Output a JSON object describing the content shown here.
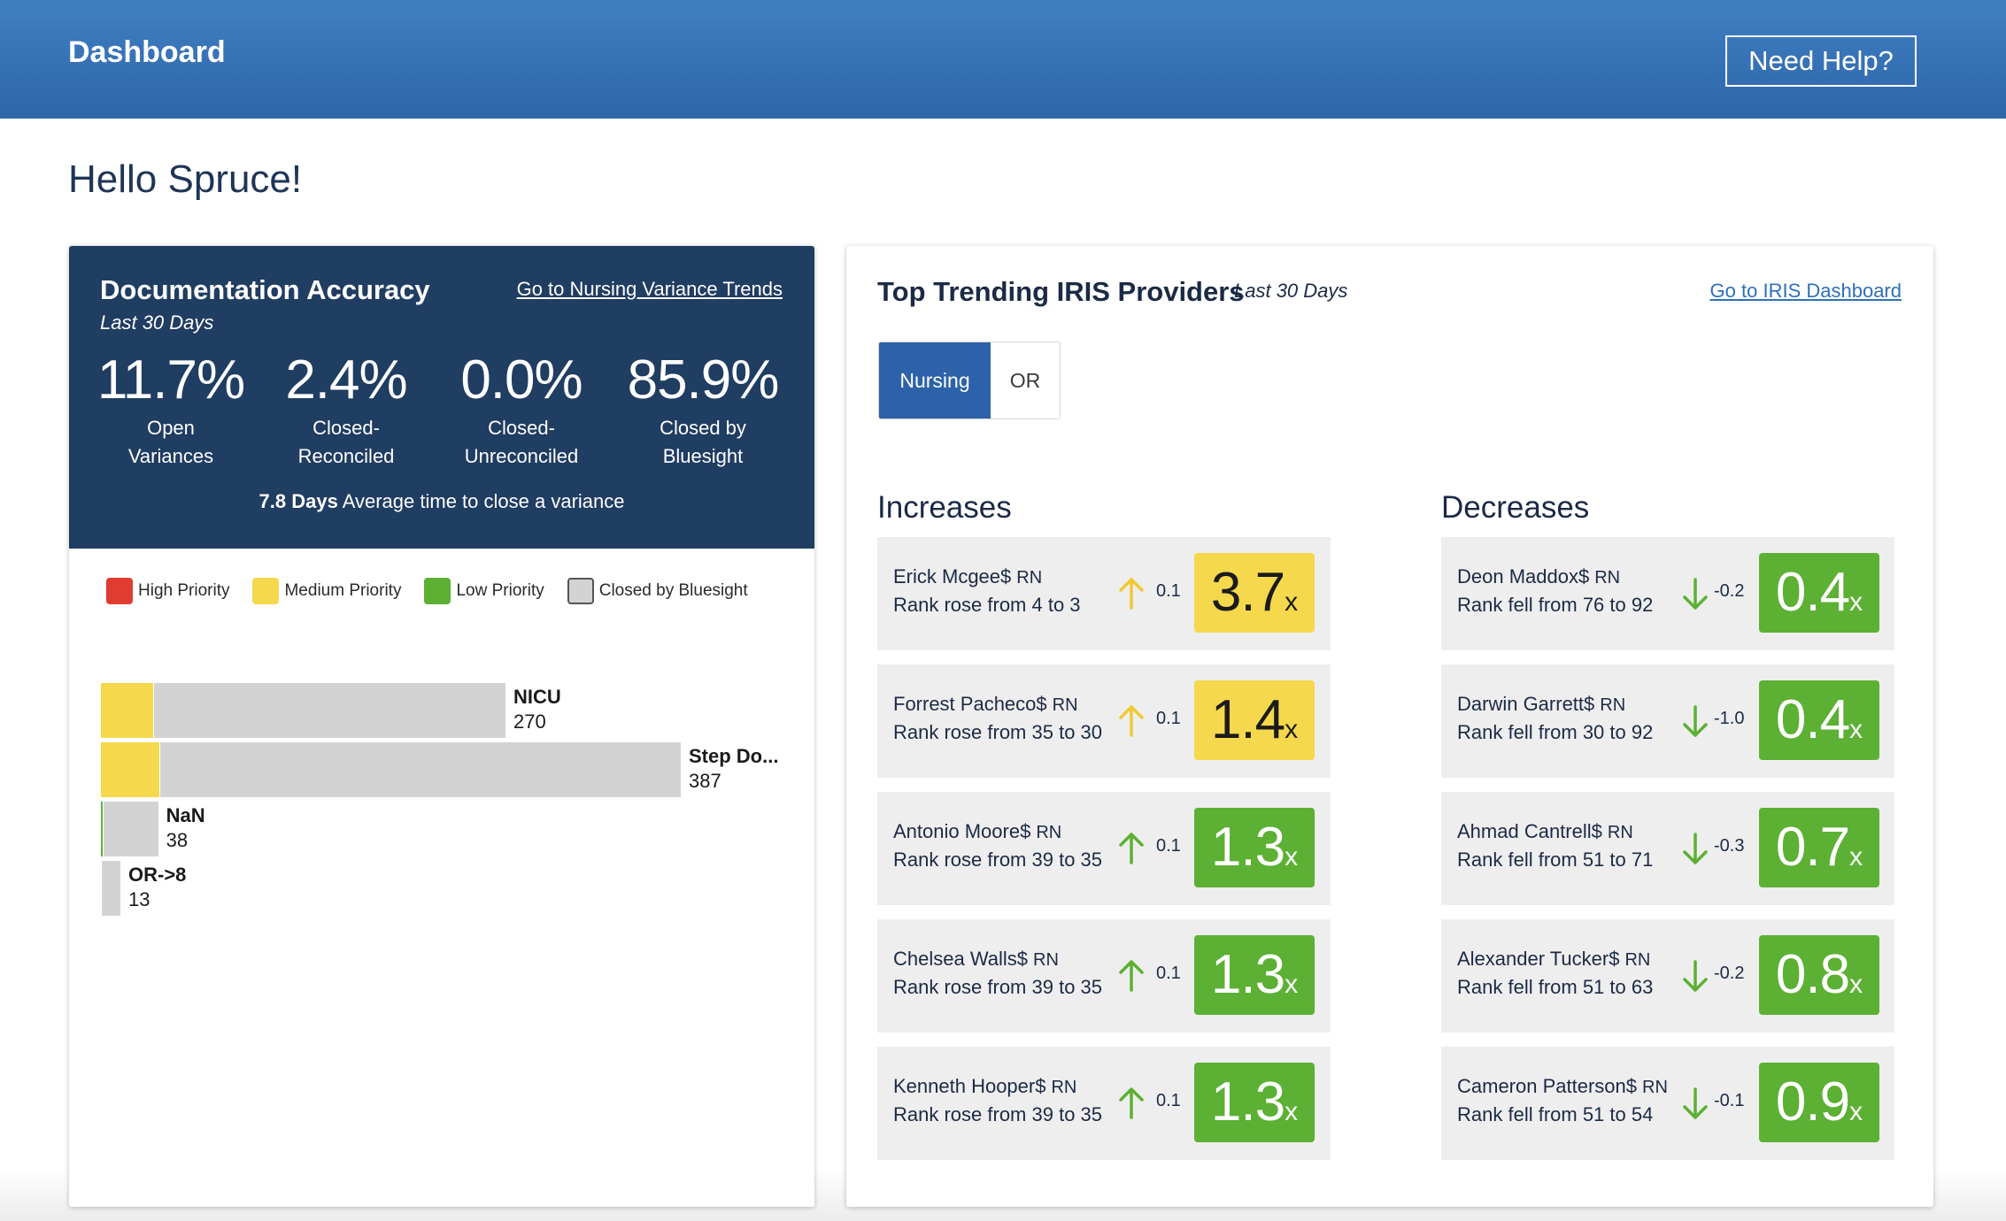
{
  "header": {
    "title": "Dashboard",
    "help_label": "Need Help?"
  },
  "greeting": "Hello Spruce!",
  "accuracy": {
    "title": "Documentation Accuracy",
    "subtitle": "Last 30 Days",
    "link": "Go to Nursing Variance Trends",
    "stats": [
      {
        "value": "11.7%",
        "label_1": "Open",
        "label_2": "Variances"
      },
      {
        "value": "2.4%",
        "label_1": "Closed-",
        "label_2": "Reconciled"
      },
      {
        "value": "0.0%",
        "label_1": "Closed-",
        "label_2": "Unreconciled"
      },
      {
        "value": "85.9%",
        "label_1": "Closed by",
        "label_2": "Bluesight"
      }
    ],
    "avg_days": "7.8 Days",
    "avg_text": "Average time to close a variance"
  },
  "legend": [
    {
      "label": "High Priority",
      "color": "#e03c31"
    },
    {
      "label": "Medium Priority",
      "color": "#f5d84c"
    },
    {
      "label": "Low Priority",
      "color": "#5cb033"
    },
    {
      "label": "Closed by Bluesight",
      "color": "#d3d3d3"
    }
  ],
  "chart_data": {
    "type": "bar",
    "orientation": "horizontal",
    "stacked": true,
    "categories": [
      "NICU",
      "Step Do...",
      "NaN",
      "OR->8"
    ],
    "totals": [
      270,
      387,
      38,
      13
    ],
    "total_labels": [
      "270",
      "387",
      "38",
      "13"
    ],
    "series": [
      {
        "name": "High Priority",
        "values": [
          0,
          0,
          0,
          0
        ]
      },
      {
        "name": "Medium Priority",
        "values": [
          35,
          39,
          0,
          0
        ]
      },
      {
        "name": "Low Priority",
        "values": [
          0,
          0,
          1,
          0
        ]
      },
      {
        "name": "Closed by Bluesight",
        "values": [
          235,
          348,
          37,
          13
        ]
      }
    ]
  },
  "trending": {
    "title": "Top Trending IRIS Providers",
    "subtitle": "Last 30 Days",
    "link": "Go to IRIS Dashboard",
    "tabs": [
      "Nursing",
      "OR"
    ],
    "increases_label": "Increases",
    "decreases_label": "Decreases",
    "increases": [
      {
        "name": "Erick Mcgee$",
        "role": "RN",
        "rank": "Rank rose from 4 to 3",
        "change": "0.1",
        "value": "3.7",
        "unit": "x",
        "level": "yellow"
      },
      {
        "name": "Forrest Pacheco$",
        "role": "RN",
        "rank": "Rank rose from 35 to 30",
        "change": "0.1",
        "value": "1.4",
        "unit": "x",
        "level": "yellow"
      },
      {
        "name": "Antonio Moore$",
        "role": "RN",
        "rank": "Rank rose from 39 to 35",
        "change": "0.1",
        "value": "1.3",
        "unit": "x",
        "level": "green"
      },
      {
        "name": "Chelsea Walls$",
        "role": "RN",
        "rank": "Rank rose from 39 to 35",
        "change": "0.1",
        "value": "1.3",
        "unit": "x",
        "level": "green"
      },
      {
        "name": "Kenneth Hooper$",
        "role": "RN",
        "rank": "Rank rose from 39 to 35",
        "change": "0.1",
        "value": "1.3",
        "unit": "x",
        "level": "green"
      }
    ],
    "decreases": [
      {
        "name": "Deon Maddox$",
        "role": "RN",
        "rank": "Rank fell from 76 to 92",
        "change": "-0.2",
        "value": "0.4",
        "unit": "x",
        "level": "green"
      },
      {
        "name": "Darwin Garrett$",
        "role": "RN",
        "rank": "Rank fell from 30 to 92",
        "change": "-1.0",
        "value": "0.4",
        "unit": "x",
        "level": "green"
      },
      {
        "name": "Ahmad Cantrell$",
        "role": "RN",
        "rank": "Rank fell from 51 to 71",
        "change": "-0.3",
        "value": "0.7",
        "unit": "x",
        "level": "green"
      },
      {
        "name": "Alexander Tucker$",
        "role": "RN",
        "rank": "Rank fell from 51 to 63",
        "change": "-0.2",
        "value": "0.8",
        "unit": "x",
        "level": "green"
      },
      {
        "name": "Cameron Patterson$",
        "role": "RN",
        "rank": "Rank fell from 51 to 54",
        "change": "-0.1",
        "value": "0.9",
        "unit": "x",
        "level": "green"
      }
    ]
  }
}
